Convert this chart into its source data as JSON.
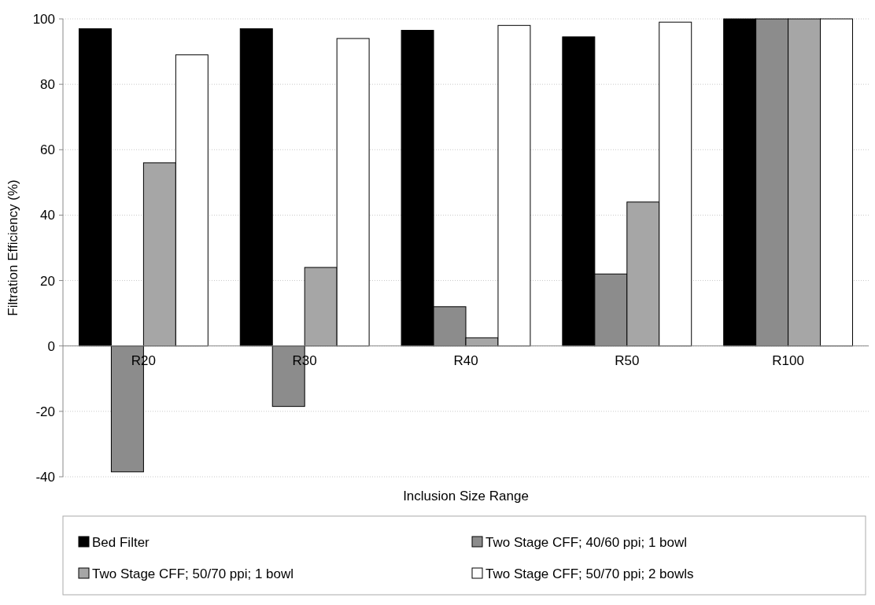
{
  "chart_data": {
    "type": "bar",
    "xlabel": "Inclusion Size Range",
    "ylabel": "Filtration Efficiency (%)",
    "categories": [
      "R20",
      "R30",
      "R40",
      "R50",
      "R100"
    ],
    "series": [
      {
        "name": "Bed Filter",
        "color": "#000000",
        "values": [
          97,
          97,
          96.5,
          94.5,
          100
        ]
      },
      {
        "name": "Two Stage CFF; 40/60 ppi; 1 bowl",
        "color": "#8c8c8c",
        "values": [
          -38.5,
          -18.5,
          12,
          22,
          100
        ]
      },
      {
        "name": "Two Stage CFF; 50/70 ppi; 1 bowl",
        "color": "#a6a6a6",
        "values": [
          56,
          24,
          2.5,
          44,
          100
        ]
      },
      {
        "name": "Two Stage CFF; 50/70 ppi; 2 bowls",
        "color": "#ffffff",
        "values": [
          89,
          94,
          98,
          99,
          100
        ]
      }
    ],
    "ylim": [
      -40,
      100
    ],
    "yticks": [
      -40,
      -20,
      0,
      20,
      40,
      60,
      80,
      100
    ],
    "grid": "y",
    "legend": "bottom"
  }
}
